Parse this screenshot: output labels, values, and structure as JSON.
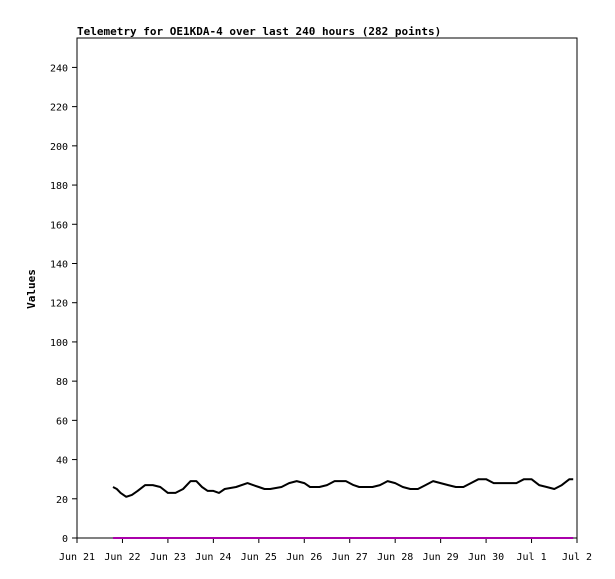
{
  "chart_data": {
    "type": "line",
    "title": "Telemetry for OE1KDA-4 over last 240 hours (282 points)",
    "xlabel": "",
    "ylabel": "Values",
    "ylim": [
      0,
      255
    ],
    "yticks": [
      0,
      20,
      40,
      60,
      80,
      100,
      120,
      140,
      160,
      180,
      200,
      220,
      240
    ],
    "xlim": [
      "2024-06-21 00:00",
      "2024-07-02 00:00"
    ],
    "xticks": [
      {
        "label": "Jun 21",
        "x": "2024-06-21 00:00"
      },
      {
        "label": "Jun 22",
        "x": "2024-06-22 00:00"
      },
      {
        "label": "Jun 23",
        "x": "2024-06-23 00:00"
      },
      {
        "label": "Jun 24",
        "x": "2024-06-24 00:00"
      },
      {
        "label": "Jun 25",
        "x": "2024-06-25 00:00"
      },
      {
        "label": "Jun 26",
        "x": "2024-06-26 00:00"
      },
      {
        "label": "Jun 27",
        "x": "2024-06-27 00:00"
      },
      {
        "label": "Jun 28",
        "x": "2024-06-28 00:00"
      },
      {
        "label": "Jun 29",
        "x": "2024-06-29 00:00"
      },
      {
        "label": "Jun 30",
        "x": "2024-06-30 00:00"
      },
      {
        "label": "Jul 1",
        "x": "2024-07-01 00:00"
      },
      {
        "label": "Jul 2",
        "x": "2024-07-02 00:00"
      }
    ],
    "grid": false,
    "series": [
      {
        "color": "#000000",
        "points": [
          [
            "2024-06-21 19:00",
            26
          ],
          [
            "2024-06-21 21:00",
            25
          ],
          [
            "2024-06-21 23:00",
            23
          ],
          [
            "2024-06-22 02:00",
            21
          ],
          [
            "2024-06-22 05:00",
            22
          ],
          [
            "2024-06-22 08:00",
            24
          ],
          [
            "2024-06-22 12:00",
            27
          ],
          [
            "2024-06-22 16:00",
            27
          ],
          [
            "2024-06-22 20:00",
            26
          ],
          [
            "2024-06-23 00:00",
            23
          ],
          [
            "2024-06-23 04:00",
            23
          ],
          [
            "2024-06-23 08:00",
            25
          ],
          [
            "2024-06-23 12:00",
            29
          ],
          [
            "2024-06-23 15:00",
            29
          ],
          [
            "2024-06-23 18:00",
            26
          ],
          [
            "2024-06-23 21:00",
            24
          ],
          [
            "2024-06-24 00:00",
            24
          ],
          [
            "2024-06-24 03:00",
            23
          ],
          [
            "2024-06-24 06:00",
            25
          ],
          [
            "2024-06-24 12:00",
            26
          ],
          [
            "2024-06-24 18:00",
            28
          ],
          [
            "2024-06-24 21:00",
            27
          ],
          [
            "2024-06-25 00:00",
            26
          ],
          [
            "2024-06-25 03:00",
            25
          ],
          [
            "2024-06-25 06:00",
            25
          ],
          [
            "2024-06-25 12:00",
            26
          ],
          [
            "2024-06-25 16:00",
            28
          ],
          [
            "2024-06-25 20:00",
            29
          ],
          [
            "2024-06-26 00:00",
            28
          ],
          [
            "2024-06-26 03:00",
            26
          ],
          [
            "2024-06-26 08:00",
            26
          ],
          [
            "2024-06-26 12:00",
            27
          ],
          [
            "2024-06-26 16:00",
            29
          ],
          [
            "2024-06-26 22:00",
            29
          ],
          [
            "2024-06-27 02:00",
            27
          ],
          [
            "2024-06-27 05:00",
            26
          ],
          [
            "2024-06-27 12:00",
            26
          ],
          [
            "2024-06-27 16:00",
            27
          ],
          [
            "2024-06-27 20:00",
            29
          ],
          [
            "2024-06-28 00:00",
            28
          ],
          [
            "2024-06-28 04:00",
            26
          ],
          [
            "2024-06-28 08:00",
            25
          ],
          [
            "2024-06-28 12:00",
            25
          ],
          [
            "2024-06-28 16:00",
            27
          ],
          [
            "2024-06-28 20:00",
            29
          ],
          [
            "2024-06-29 00:00",
            28
          ],
          [
            "2024-06-29 04:00",
            27
          ],
          [
            "2024-06-29 08:00",
            26
          ],
          [
            "2024-06-29 12:00",
            26
          ],
          [
            "2024-06-29 16:00",
            28
          ],
          [
            "2024-06-29 20:00",
            30
          ],
          [
            "2024-06-30 00:00",
            30
          ],
          [
            "2024-06-30 04:00",
            28
          ],
          [
            "2024-06-30 12:00",
            28
          ],
          [
            "2024-06-30 16:00",
            28
          ],
          [
            "2024-06-30 20:00",
            30
          ],
          [
            "2024-07-01 00:00",
            30
          ],
          [
            "2024-07-01 04:00",
            27
          ],
          [
            "2024-07-01 08:00",
            26
          ],
          [
            "2024-07-01 12:00",
            25
          ],
          [
            "2024-07-01 16:00",
            27
          ],
          [
            "2024-07-01 20:00",
            30
          ],
          [
            "2024-07-01 22:00",
            30
          ]
        ]
      },
      {
        "color": "#aa00aa",
        "points": [
          [
            "2024-06-21 19:00",
            0
          ],
          [
            "2024-07-01 22:00",
            0
          ]
        ]
      }
    ]
  }
}
